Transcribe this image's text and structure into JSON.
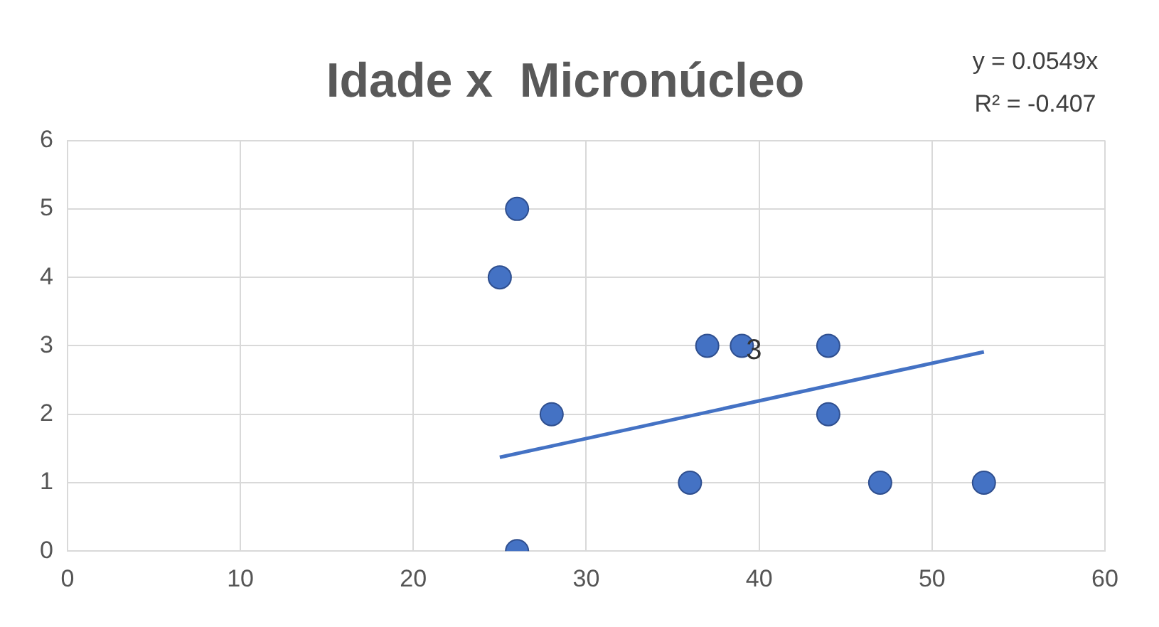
{
  "chart_data": {
    "type": "scatter",
    "title": "Idade x  Micronúcleo",
    "xlim": [
      0,
      60
    ],
    "xticks": [
      0,
      10,
      20,
      30,
      40,
      50,
      60
    ],
    "ylim": [
      0,
      6
    ],
    "yticks": [
      0,
      1,
      2,
      3,
      4,
      5,
      6
    ],
    "grid": true,
    "series": [
      {
        "color": "#4472c4",
        "marker": "circle",
        "x": [
          25,
          26,
          26,
          28,
          36,
          37,
          39,
          44,
          44,
          47,
          53
        ],
        "values": [
          4,
          5,
          0,
          2,
          1,
          3,
          3,
          3,
          2,
          1,
          1
        ]
      },
      {
        "type": "line",
        "marker": "none",
        "color": "#4472c4",
        "x": [
          25,
          53
        ],
        "values": [
          1.37,
          2.91
        ]
      }
    ],
    "annotations": [
      {
        "text": "3",
        "x": 39,
        "y": 3
      },
      "y = 0.0549x",
      "R² = -0.407"
    ]
  }
}
